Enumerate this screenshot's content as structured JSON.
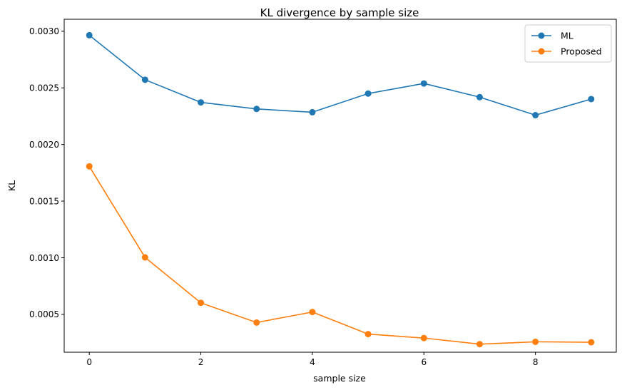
{
  "chart_data": {
    "type": "line",
    "title": "KL divergence by sample size",
    "xlabel": "sample size",
    "ylabel": "KL",
    "x": [
      0,
      1,
      2,
      3,
      4,
      5,
      6,
      7,
      8,
      9
    ],
    "xlim": [
      -0.45,
      9.45
    ],
    "ylim": [
      0.000166,
      0.003106
    ],
    "xticks": [
      0,
      2,
      4,
      6,
      8
    ],
    "xtick_labels": [
      "0",
      "2",
      "4",
      "6",
      "8"
    ],
    "yticks": [
      0.0005,
      0.001,
      0.0015,
      0.002,
      0.0025,
      0.003
    ],
    "ytick_labels": [
      "0.0005",
      "0.0010",
      "0.0015",
      "0.0020",
      "0.0025",
      "0.0030"
    ],
    "grid": false,
    "legend_position": "top-right",
    "series": [
      {
        "name": "ML",
        "color": "#1f77b4",
        "values": [
          0.002965,
          0.002572,
          0.002372,
          0.002314,
          0.002285,
          0.00245,
          0.002539,
          0.002418,
          0.002259,
          0.002401
        ]
      },
      {
        "name": "Proposed",
        "color": "#ff7f0e",
        "values": [
          0.001807,
          0.001003,
          0.000602,
          0.000428,
          0.000521,
          0.000326,
          0.000291,
          0.000237,
          0.000258,
          0.000254
        ]
      }
    ]
  }
}
